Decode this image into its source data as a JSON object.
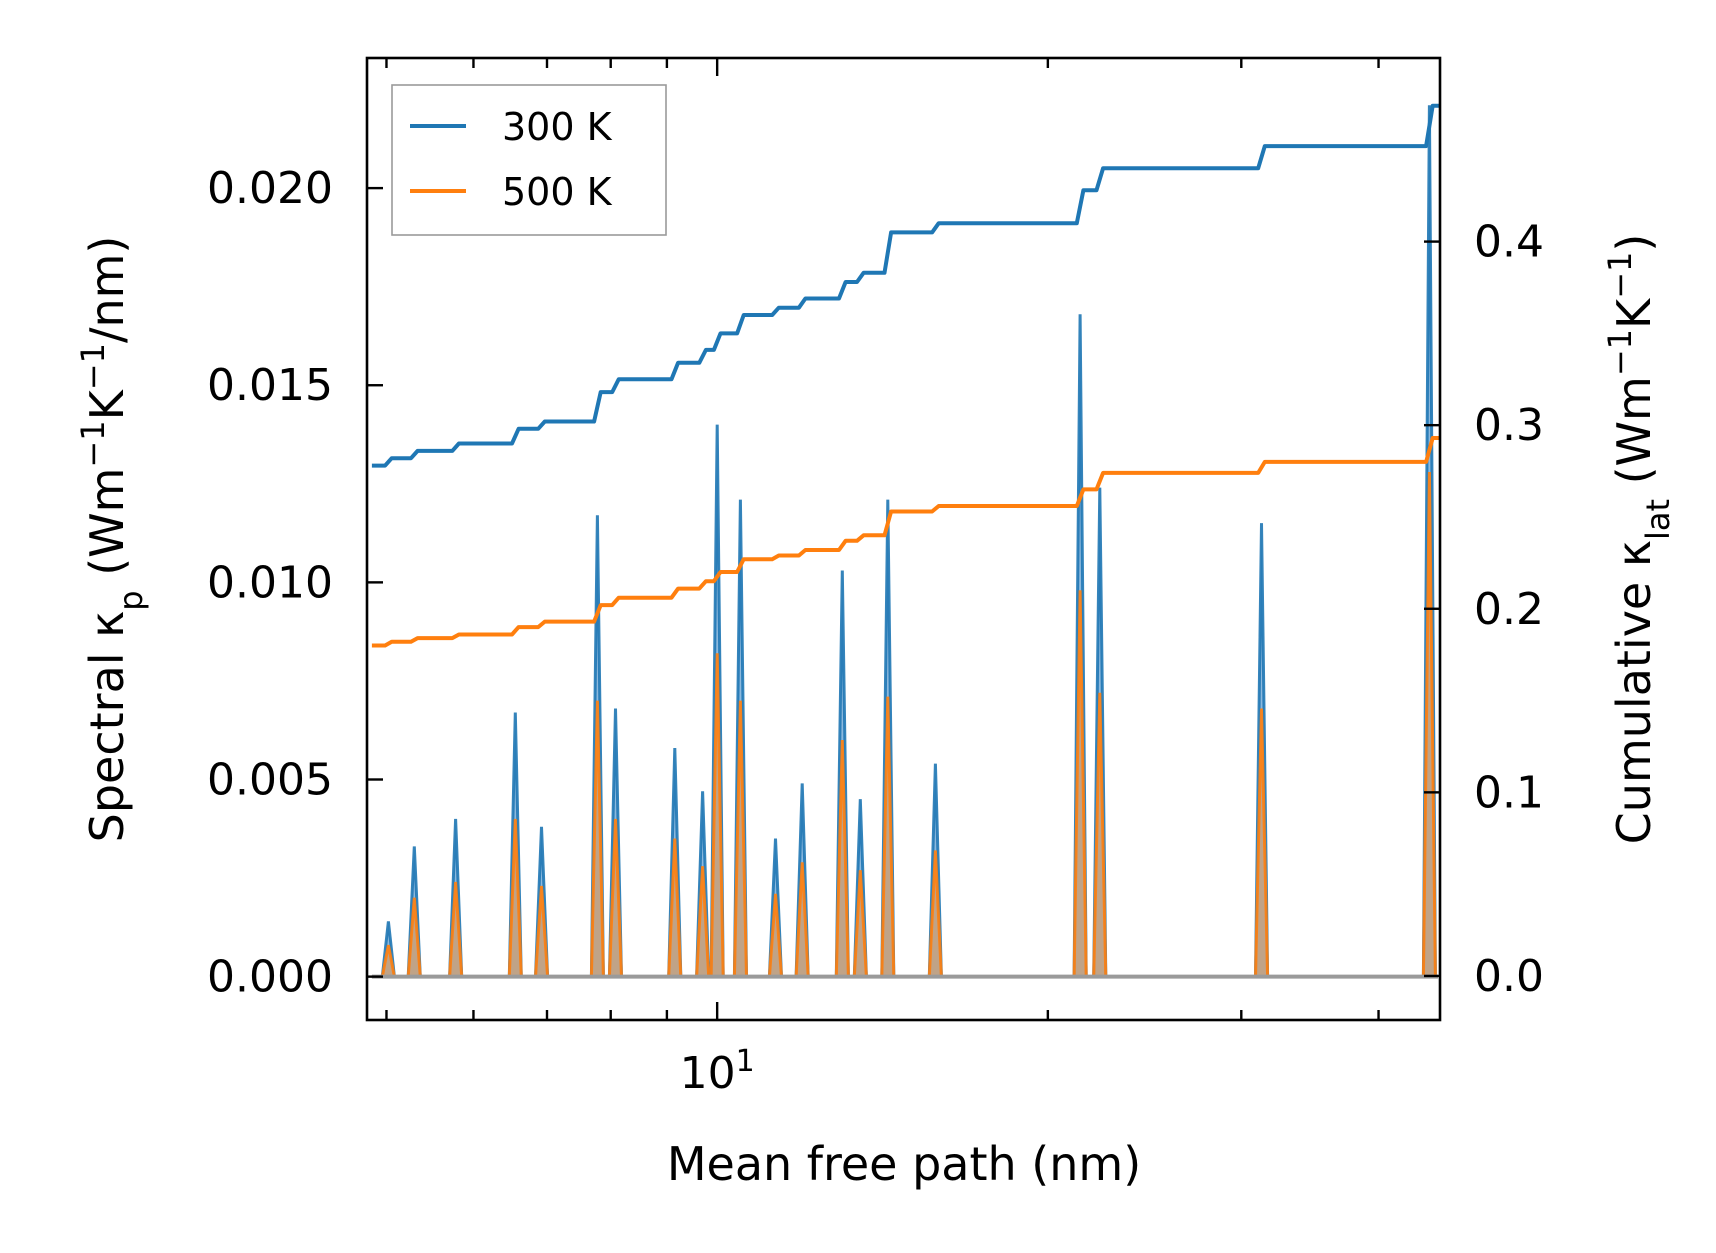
{
  "chart_data": {
    "type": "line",
    "xscale": "log",
    "xlabel": "Mean free path (nm)",
    "ylabel_left": {
      "text": "Spectral κ",
      "sub": "p",
      "units_prefix": " (Wm",
      "sup1": "−1",
      "mid": "K",
      "sup2": "−1",
      "suffix": "/nm)"
    },
    "ylabel_right": {
      "text": "Cumulative κ",
      "sub": "lat",
      "units_prefix": " (Wm",
      "sup1": "−1",
      "mid": "K",
      "sup2": "−1",
      "suffix": ")"
    },
    "xlim": [
      4.8,
      45.5
    ],
    "ylim_left": [
      -0.0011,
      0.0233
    ],
    "ylim_right": [
      -0.024,
      0.5
    ],
    "xticks_major": [
      {
        "value": 10,
        "base": "10",
        "exp": "1"
      }
    ],
    "xticks_minor": [
      5,
      6,
      7,
      8,
      9,
      20,
      30,
      40
    ],
    "yticks_left": [
      "0.000",
      "0.005",
      "0.010",
      "0.015",
      "0.020"
    ],
    "yticks_right": [
      "0.0",
      "0.1",
      "0.2",
      "0.3",
      "0.4"
    ],
    "legend": {
      "location": "top-left",
      "entries": [
        "300 K",
        "500 K"
      ]
    },
    "colors": {
      "s300": "#1f77b4",
      "s500": "#ff7f0e",
      "fill300": "#5b9bd0",
      "fill500": "#d69a62"
    },
    "spectral_peaks": [
      {
        "x": 5.02,
        "k300": 0.0014,
        "k500": 0.0008
      },
      {
        "x": 5.3,
        "k300": 0.0033,
        "k500": 0.002
      },
      {
        "x": 5.78,
        "k300": 0.004,
        "k500": 0.0024
      },
      {
        "x": 6.55,
        "k300": 0.0067,
        "k500": 0.004
      },
      {
        "x": 6.92,
        "k300": 0.0038,
        "k500": 0.0023
      },
      {
        "x": 7.78,
        "k300": 0.0117,
        "k500": 0.007
      },
      {
        "x": 8.08,
        "k300": 0.0068,
        "k500": 0.004
      },
      {
        "x": 9.15,
        "k300": 0.0058,
        "k500": 0.0035
      },
      {
        "x": 9.7,
        "k300": 0.0047,
        "k500": 0.0028
      },
      {
        "x": 10.0,
        "k300": 0.014,
        "k500": 0.0082
      },
      {
        "x": 10.5,
        "k300": 0.0121,
        "k500": 0.007
      },
      {
        "x": 11.3,
        "k300": 0.0035,
        "k500": 0.0021
      },
      {
        "x": 11.95,
        "k300": 0.0049,
        "k500": 0.0029
      },
      {
        "x": 13.0,
        "k300": 0.0103,
        "k500": 0.006
      },
      {
        "x": 13.5,
        "k300": 0.0045,
        "k500": 0.0027
      },
      {
        "x": 14.3,
        "k300": 0.0121,
        "k500": 0.0071
      },
      {
        "x": 15.8,
        "k300": 0.0054,
        "k500": 0.0032
      },
      {
        "x": 21.4,
        "k300": 0.0168,
        "k500": 0.0098
      },
      {
        "x": 22.3,
        "k300": 0.0124,
        "k500": 0.0072
      },
      {
        "x": 31.3,
        "k300": 0.0115,
        "k500": 0.0068
      },
      {
        "x": 44.5,
        "k300": 0.0221,
        "k500": 0.0128
      }
    ],
    "series": [
      {
        "name": "300 K",
        "x": [
          4.85,
          5.02,
          5.3,
          5.78,
          6.55,
          6.92,
          7.78,
          8.08,
          9.15,
          9.7,
          10.0,
          10.5,
          11.3,
          11.95,
          13.0,
          13.5,
          14.3,
          15.8,
          21.4,
          22.3,
          31.3,
          44.5,
          45.3
        ],
        "cumulative": [
          0.278,
          0.282,
          0.286,
          0.29,
          0.298,
          0.302,
          0.318,
          0.325,
          0.334,
          0.341,
          0.35,
          0.36,
          0.364,
          0.369,
          0.378,
          0.383,
          0.405,
          0.41,
          0.428,
          0.44,
          0.452,
          0.474,
          0.474
        ]
      },
      {
        "name": "500 K",
        "x": [
          4.85,
          5.02,
          5.3,
          5.78,
          6.55,
          6.92,
          7.78,
          8.08,
          9.15,
          9.7,
          10.0,
          10.5,
          11.3,
          11.95,
          13.0,
          13.5,
          14.3,
          15.8,
          21.4,
          22.3,
          31.3,
          44.5,
          45.3
        ],
        "cumulative": [
          0.18,
          0.182,
          0.184,
          0.186,
          0.19,
          0.193,
          0.202,
          0.206,
          0.211,
          0.215,
          0.22,
          0.227,
          0.229,
          0.232,
          0.237,
          0.24,
          0.253,
          0.256,
          0.265,
          0.274,
          0.28,
          0.293,
          0.293
        ]
      }
    ]
  }
}
